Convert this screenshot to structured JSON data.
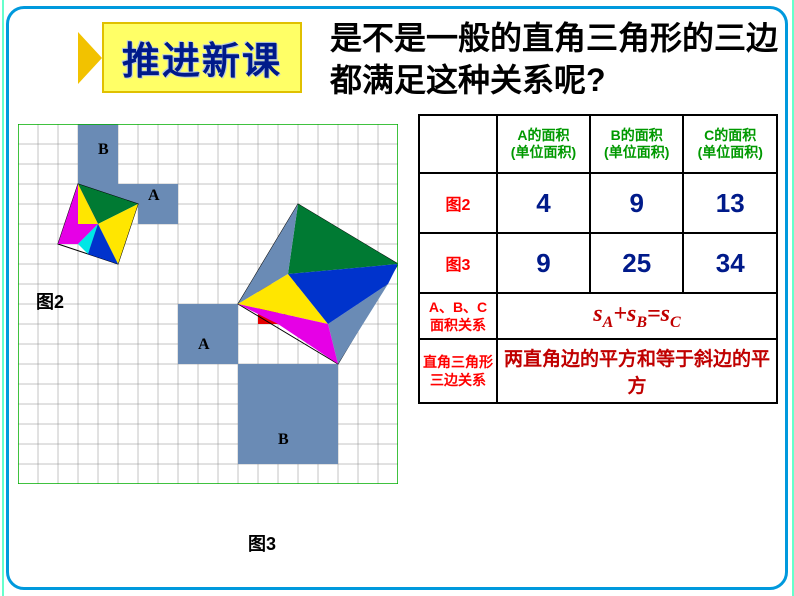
{
  "banner": "推进新课",
  "question": "是不是一般的直角三角形的三边都满足这种关系呢?",
  "fig2_label": "图2",
  "fig3_label": "图3",
  "label_A": "A",
  "label_B": "B",
  "label_C": "C",
  "table": {
    "headers": [
      "A的面积\n(单位面积)",
      "B的面积\n(单位面积)",
      "C的面积\n(单位面积)"
    ],
    "rows": [
      {
        "label": "图2",
        "values": [
          "4",
          "9",
          "13"
        ]
      },
      {
        "label": "图3",
        "values": [
          "9",
          "25",
          "34"
        ]
      }
    ],
    "relation_label": "A、B、C面积关系",
    "relation_formula_html": "s<sub>A</sub>+s<sub>B</sub>=s<sub>C</sub>",
    "triangle_label": "直角三角形三边关系",
    "triangle_text": "两直角边的平方和等于斜边的平方"
  },
  "colors": {
    "grid_square": "#6a8bb5",
    "green": "#007a33",
    "red": "#e60000",
    "yellow": "#ffe600",
    "cyan": "#00e6e6",
    "magenta": "#e600e6",
    "blue": "#0033cc",
    "border": "#0099dd"
  }
}
